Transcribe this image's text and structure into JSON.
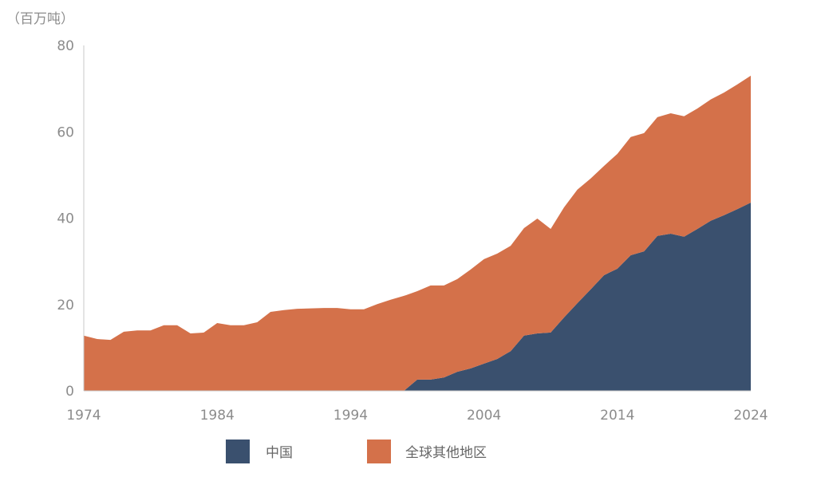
{
  "chart_data": {
    "type": "area",
    "stacked": true,
    "title": "",
    "unit_label": "（百万吨）",
    "xlabel": "",
    "ylabel": "（百万吨）",
    "ylim": [
      0,
      80
    ],
    "xlim": [
      1974,
      2024
    ],
    "yticks": [
      "0",
      "20",
      "40",
      "60",
      "80"
    ],
    "ytick_values": [
      0,
      20,
      40,
      60,
      80
    ],
    "xticks": [
      "1974",
      "1984",
      "1994",
      "2004",
      "2014",
      "2024"
    ],
    "xtick_values": [
      1974,
      1984,
      1994,
      2004,
      2014,
      2024
    ],
    "grid": false,
    "legend_position": "bottom",
    "x": [
      1974,
      1975,
      1976,
      1977,
      1978,
      1979,
      1980,
      1981,
      1982,
      1983,
      1984,
      1985,
      1986,
      1987,
      1988,
      1989,
      1990,
      1991,
      1992,
      1993,
      1994,
      1995,
      1996,
      1997,
      1998,
      1999,
      2000,
      2001,
      2002,
      2003,
      2004,
      2005,
      2006,
      2007,
      2008,
      2009,
      2010,
      2011,
      2012,
      2013,
      2014,
      2015,
      2016,
      2017,
      2018,
      2019,
      2020,
      2021,
      2022,
      2023,
      2024
    ],
    "series": [
      {
        "name": "中国",
        "color": "#3a506e",
        "values": [
          0,
          0,
          0,
          0,
          0,
          0,
          0,
          0,
          0,
          0,
          0,
          0,
          0,
          0,
          0,
          0,
          0,
          0,
          0,
          0,
          0,
          0,
          0,
          0,
          0,
          2.6,
          2.6,
          3.1,
          4.4,
          5.2,
          6.3,
          7.4,
          9.2,
          12.8,
          13.3,
          13.5,
          17.0,
          20.3,
          23.5,
          26.8,
          28.3,
          31.4,
          32.3,
          35.9,
          36.4,
          35.7,
          37.5,
          39.4,
          40.7,
          42.1,
          43.6
        ]
      },
      {
        "name": "全球其他地区",
        "color": "#d4714a",
        "values": [
          12.8,
          12.0,
          11.8,
          13.7,
          14.0,
          14.0,
          15.2,
          15.2,
          13.3,
          13.5,
          15.7,
          15.2,
          15.2,
          15.9,
          18.3,
          18.7,
          19.0,
          19.1,
          19.2,
          19.2,
          18.9,
          18.9,
          20.1,
          21.1,
          22.0,
          20.5,
          21.8,
          21.3,
          21.5,
          22.9,
          24.2,
          24.4,
          24.4,
          24.9,
          26.6,
          24.0,
          25.5,
          26.3,
          25.7,
          25.3,
          26.6,
          27.4,
          27.4,
          27.5,
          27.9,
          27.9,
          27.9,
          28.1,
          28.4,
          28.9,
          29.4
        ]
      }
    ]
  }
}
